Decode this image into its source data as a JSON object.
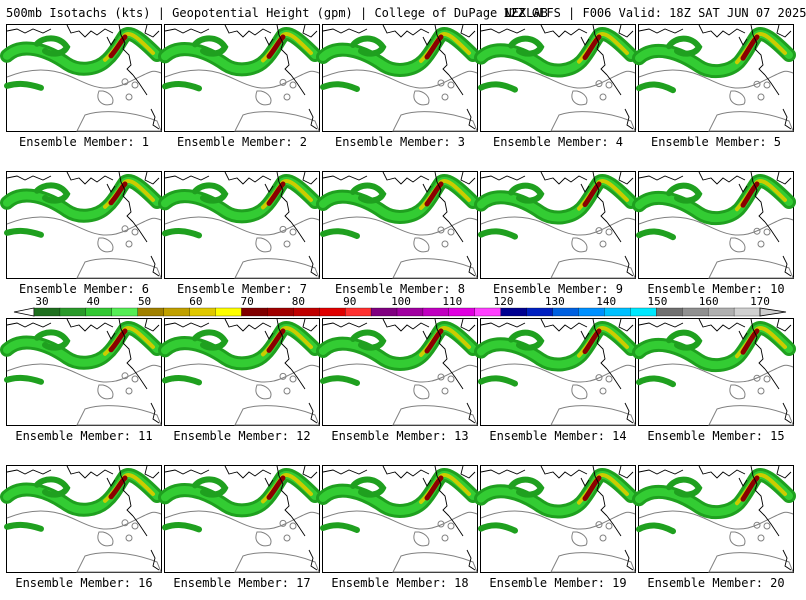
{
  "header": {
    "left": "500mb Isotachs (kts) | Geopotential Height (gpm) | College of DuPage NEXLAB",
    "right": "12Z GEFS | F006 Valid: 18Z SAT JUN 07 2025"
  },
  "members": [
    "Ensemble Member: 1",
    "Ensemble Member: 2",
    "Ensemble Member: 3",
    "Ensemble Member: 4",
    "Ensemble Member: 5",
    "Ensemble Member: 6",
    "Ensemble Member: 7",
    "Ensemble Member: 8",
    "Ensemble Member: 9",
    "Ensemble Member: 10",
    "Ensemble Member: 11",
    "Ensemble Member: 12",
    "Ensemble Member: 13",
    "Ensemble Member: 14",
    "Ensemble Member: 15",
    "Ensemble Member: 16",
    "Ensemble Member: 17",
    "Ensemble Member: 18",
    "Ensemble Member: 19",
    "Ensemble Member: 20"
  ],
  "colorbar": {
    "tick_labels": [
      "30",
      "40",
      "50",
      "60",
      "70",
      "80",
      "90",
      "100",
      "110",
      "120",
      "130",
      "140",
      "150",
      "160",
      "170"
    ],
    "colors": [
      "#1f6f1f",
      "#2a9a2a",
      "#33c833",
      "#55ee55",
      "#a08000",
      "#c0a000",
      "#e0c800",
      "#ffff00",
      "#800000",
      "#a00000",
      "#c00000",
      "#e00000",
      "#ff3030",
      "#800080",
      "#a000a0",
      "#c000c0",
      "#e000e0",
      "#ff40ff",
      "#000090",
      "#0020c0",
      "#0060e0",
      "#0090ff",
      "#00c0ff",
      "#00e8ff",
      "#707070",
      "#909090",
      "#b0b0b0",
      "#d0d0d0"
    ]
  },
  "colors": {
    "jet_low": "#1fa01f",
    "jet_mid": "#33cc33",
    "jet_high": "#cccc00",
    "jet_core": "#8b0000",
    "coastline": "#000000",
    "height_contour": "#808080"
  }
}
